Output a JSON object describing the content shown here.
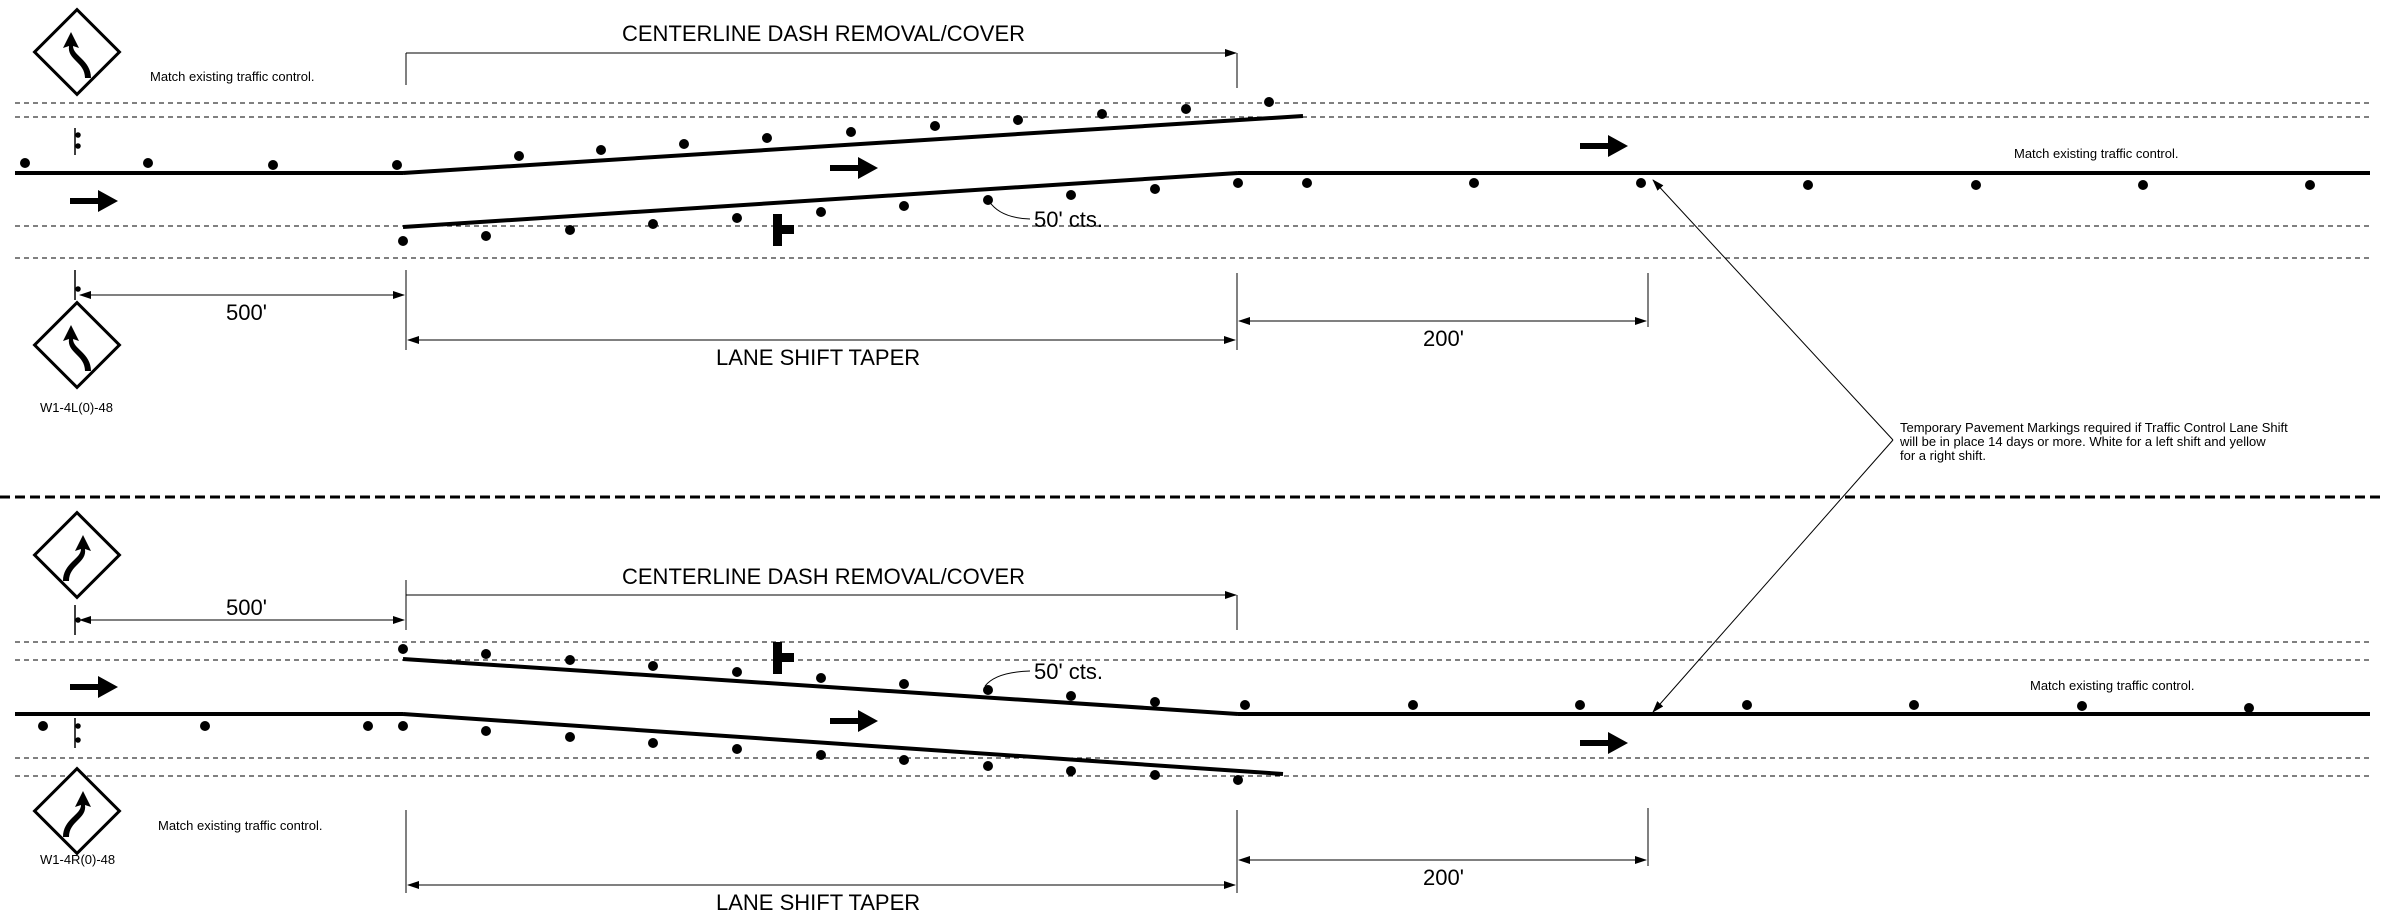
{
  "top": {
    "title": "CENTERLINE DASH REMOVAL/COVER",
    "note_left": "Match existing traffic control.",
    "note_right": "Match existing traffic control.",
    "spacing": "50' cts.",
    "dist_sign": "500'",
    "taper": "LANE SHIFT TAPER",
    "dist_after": "200'",
    "sign_code": "W1-4L(0)-48"
  },
  "bottom": {
    "title": "CENTERLINE DASH REMOVAL/COVER",
    "note_left": "Match existing traffic control.",
    "note_right": "Match existing traffic control.",
    "spacing": "50' cts.",
    "dist_sign": "500'",
    "taper": "LANE SHIFT TAPER",
    "dist_after": "200'",
    "sign_code": "W1-4R(0)-48"
  },
  "temp_marking_note": [
    "Temporary Pavement Markings required if Traffic Control Lane Shift",
    "will be in place 14 days or more. White for a left shift and yellow",
    "for a right shift."
  ],
  "icons": {
    "top_sign": "reverse-curve-left-sign-icon",
    "bottom_sign": "reverse-curve-right-sign-icon",
    "arrow": "traffic-direction-arrow-icon",
    "arrow_board": "arrow-board-icon",
    "drum": "channelizing-drum-icon"
  }
}
